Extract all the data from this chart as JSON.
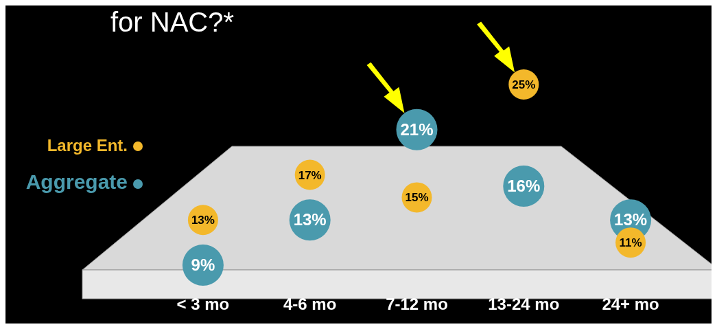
{
  "chart_data": {
    "type": "bubble",
    "title": "for NAC?*",
    "categories": [
      "< 3 mo",
      "4-6 mo",
      "7-12 mo",
      "13-24 mo",
      "24+ mo"
    ],
    "series": [
      {
        "name": "Aggregate",
        "color": "#4a9aad",
        "values": [
          9,
          13,
          21,
          16,
          13
        ],
        "value_labels": [
          "9%",
          "13%",
          "21%",
          "16%",
          "13%"
        ]
      },
      {
        "name": "Large Ent.",
        "color": "#f3b82b",
        "values": [
          13,
          17,
          15,
          25,
          11
        ],
        "value_labels": [
          "13%",
          "17%",
          "15%",
          "25%",
          "11%"
        ]
      }
    ],
    "legend": "left",
    "grid": false
  }
}
